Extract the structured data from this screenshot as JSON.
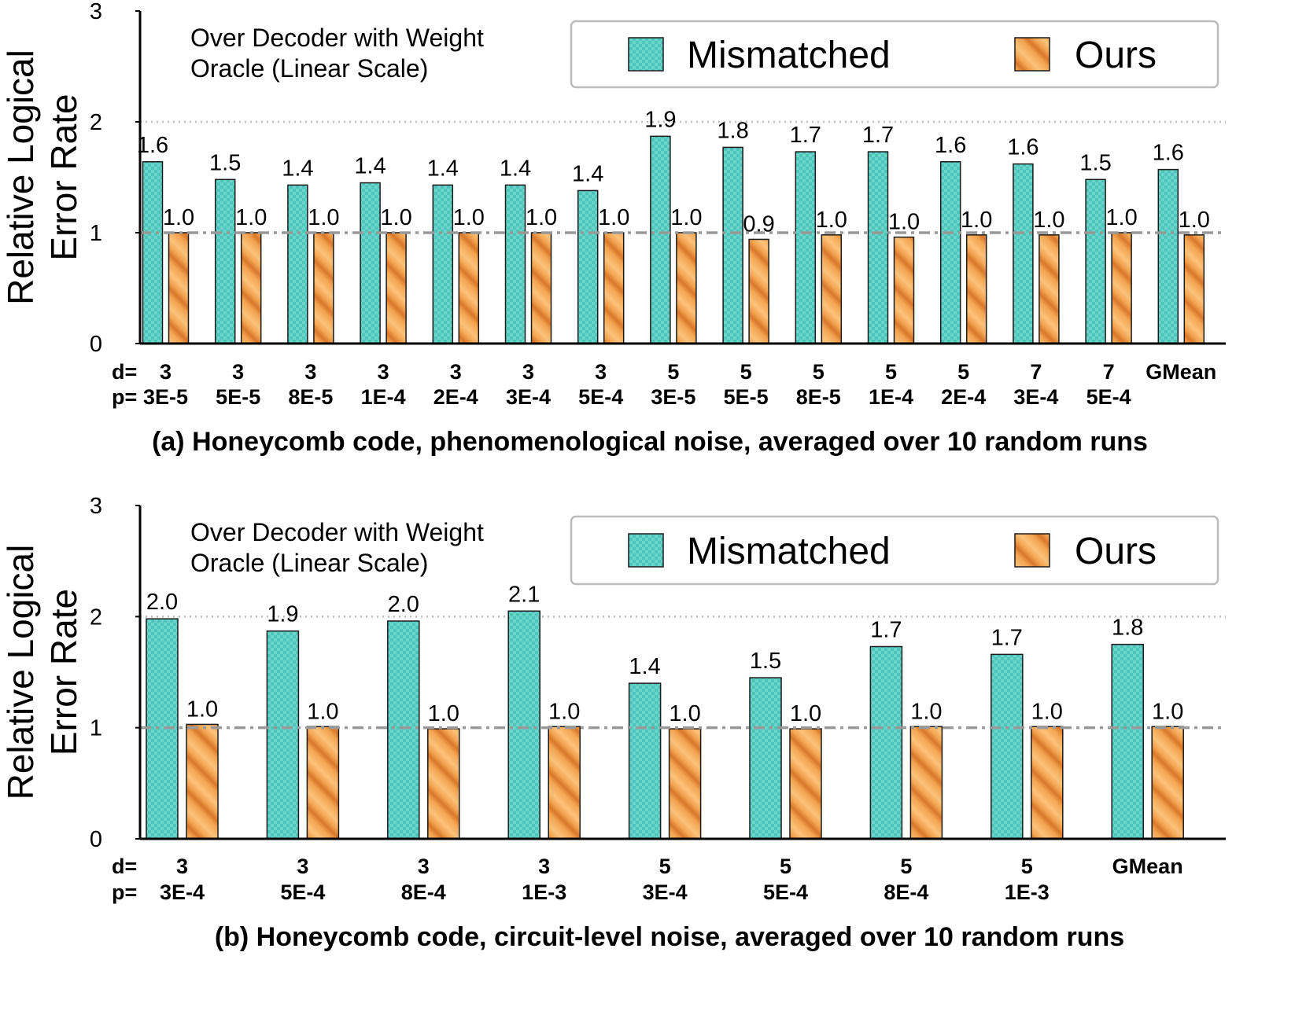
{
  "chart_data": [
    {
      "type": "bar",
      "title": "",
      "caption": "(a) Honeycomb code, phenomenological noise, averaged over 10 random runs",
      "ylabel": [
        "Relative Logical",
        "Error Rate"
      ],
      "xlabel": "",
      "ylim": [
        0,
        3
      ],
      "yticks": [
        0,
        1,
        2,
        3
      ],
      "annotation": [
        "Over Decoder with Weight",
        "Oracle (Linear Scale)"
      ],
      "row_labels": [
        "d=",
        "p="
      ],
      "categories": [
        {
          "d": "3",
          "p": "3E-5"
        },
        {
          "d": "3",
          "p": "5E-5"
        },
        {
          "d": "3",
          "p": "8E-5"
        },
        {
          "d": "3",
          "p": "1E-4"
        },
        {
          "d": "3",
          "p": "2E-4"
        },
        {
          "d": "3",
          "p": "3E-4"
        },
        {
          "d": "3",
          "p": "5E-4"
        },
        {
          "d": "5",
          "p": "3E-5"
        },
        {
          "d": "5",
          "p": "5E-5"
        },
        {
          "d": "5",
          "p": "8E-5"
        },
        {
          "d": "5",
          "p": "1E-4"
        },
        {
          "d": "5",
          "p": "2E-4"
        },
        {
          "d": "7",
          "p": "3E-4"
        },
        {
          "d": "7",
          "p": "5E-4"
        },
        {
          "d": "GMean",
          "p": ""
        }
      ],
      "series": [
        {
          "name": "Mismatched",
          "values": [
            1.64,
            1.48,
            1.43,
            1.45,
            1.43,
            1.43,
            1.38,
            1.87,
            1.77,
            1.73,
            1.73,
            1.64,
            1.62,
            1.48,
            1.57
          ],
          "labels": [
            "1.6",
            "1.5",
            "1.4",
            "1.4",
            "1.4",
            "1.4",
            "1.4",
            "1.9",
            "1.8",
            "1.7",
            "1.7",
            "1.6",
            "1.6",
            "1.5",
            "1.6"
          ]
        },
        {
          "name": "Ours",
          "values": [
            1.0,
            1.0,
            1.0,
            1.0,
            1.0,
            1.0,
            1.0,
            1.0,
            0.94,
            0.98,
            0.96,
            0.98,
            0.98,
            1.0,
            0.98
          ],
          "labels": [
            "1.0",
            "1.0",
            "1.0",
            "1.0",
            "1.0",
            "1.0",
            "1.0",
            "1.0",
            "0.9",
            "1.0",
            "1.0",
            "1.0",
            "1.0",
            "1.0",
            "1.0"
          ]
        }
      ],
      "reference_line": 1,
      "grid": "dotted line at 2",
      "legend": "top-right"
    },
    {
      "type": "bar",
      "title": "",
      "caption": "(b) Honeycomb code, circuit-level noise, averaged over 10 random runs",
      "ylabel": [
        "Relative Logical",
        "Error Rate"
      ],
      "xlabel": "",
      "ylim": [
        0,
        3
      ],
      "yticks": [
        0,
        1,
        2,
        3
      ],
      "annotation": [
        "Over Decoder with Weight",
        "Oracle (Linear Scale)"
      ],
      "row_labels": [
        "d=",
        "p="
      ],
      "categories": [
        {
          "d": "3",
          "p": "3E-4"
        },
        {
          "d": "3",
          "p": "5E-4"
        },
        {
          "d": "3",
          "p": "8E-4"
        },
        {
          "d": "3",
          "p": "1E-3"
        },
        {
          "d": "5",
          "p": "3E-4"
        },
        {
          "d": "5",
          "p": "5E-4"
        },
        {
          "d": "5",
          "p": "8E-4"
        },
        {
          "d": "5",
          "p": "1E-3"
        },
        {
          "d": "GMean",
          "p": ""
        }
      ],
      "series": [
        {
          "name": "Mismatched",
          "values": [
            1.98,
            1.87,
            1.96,
            2.05,
            1.4,
            1.45,
            1.73,
            1.66,
            1.75
          ],
          "labels": [
            "2.0",
            "1.9",
            "2.0",
            "2.1",
            "1.4",
            "1.5",
            "1.7",
            "1.7",
            "1.8"
          ]
        },
        {
          "name": "Ours",
          "values": [
            1.03,
            1.01,
            0.99,
            1.01,
            0.99,
            0.99,
            1.01,
            1.01,
            1.01
          ],
          "labels": [
            "1.0",
            "1.0",
            "1.0",
            "1.0",
            "1.0",
            "1.0",
            "1.0",
            "1.0",
            "1.0"
          ]
        }
      ],
      "reference_line": 1,
      "grid": "dotted line at 2",
      "legend": "top-right"
    }
  ],
  "colors": {
    "mismatched_fill": "#4ec4ba",
    "mismatched_check": "#6ad6cb",
    "ours_fill": "#f9b464",
    "ours_stripe": "#d9772b",
    "axis": "#000000",
    "refline": "#999999",
    "grid": "#bbbbbb",
    "legend_border": "#bbbbbb"
  }
}
